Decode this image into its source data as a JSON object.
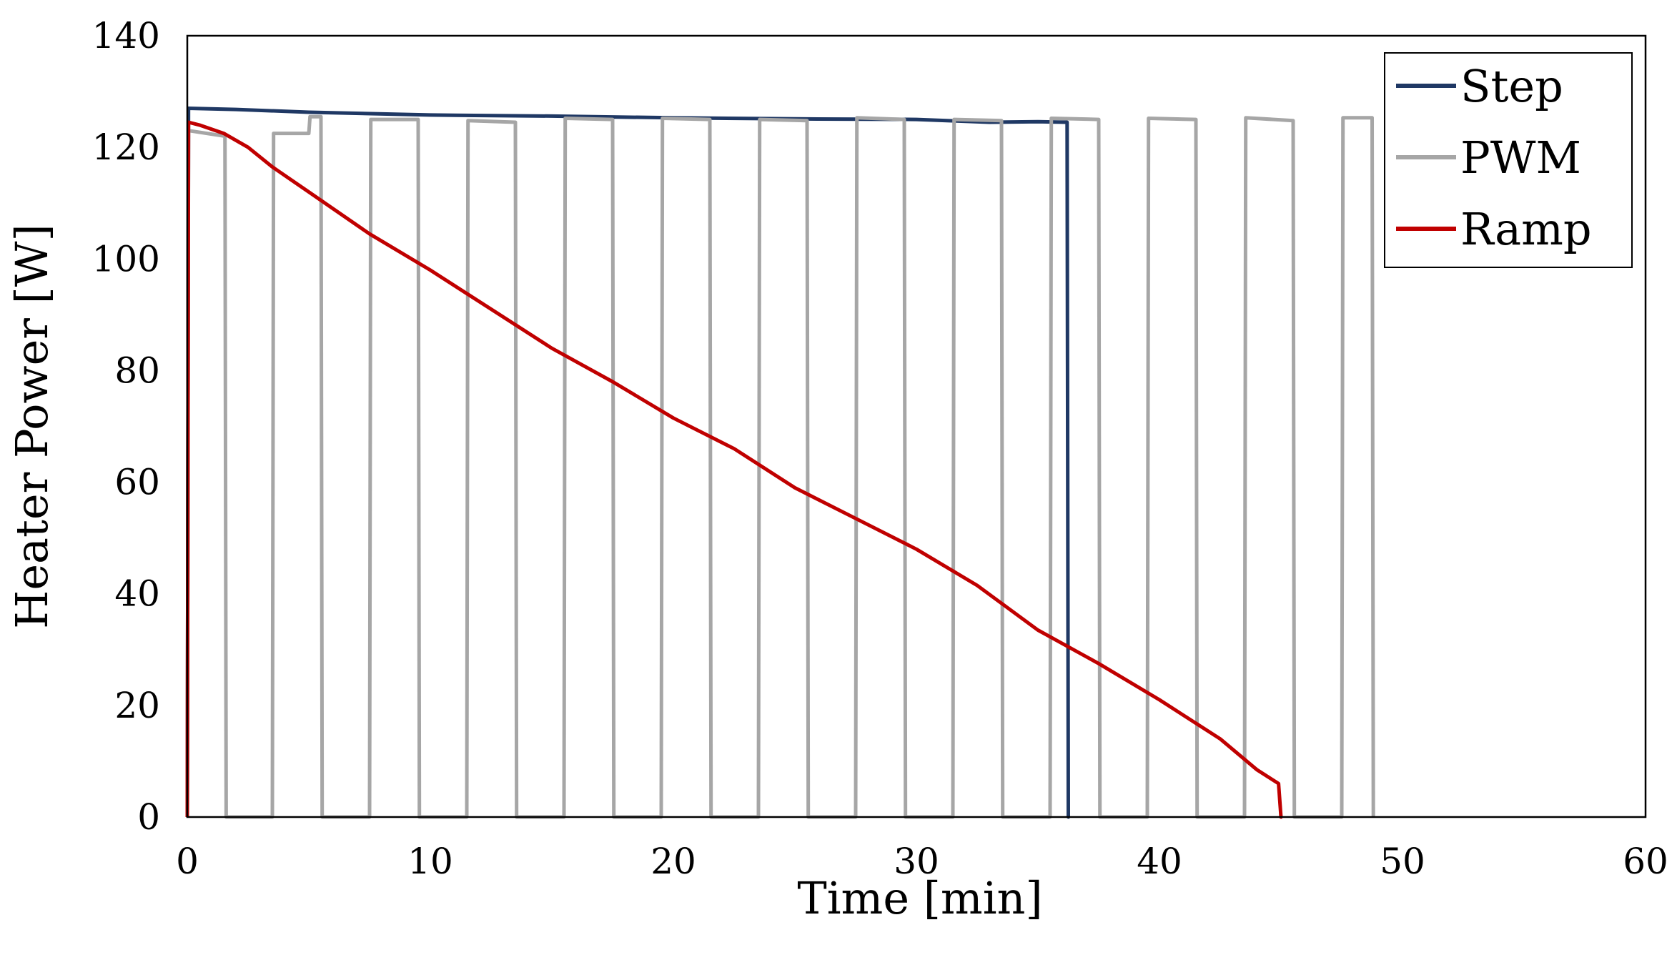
{
  "chart_data": {
    "type": "line",
    "title": "",
    "xlabel": "Time [min]",
    "ylabel": "Heater Power [W]",
    "xlim": [
      0,
      60
    ],
    "ylim": [
      0,
      140
    ],
    "xticks": [
      0,
      10,
      20,
      30,
      40,
      50,
      60
    ],
    "yticks": [
      0,
      20,
      40,
      60,
      80,
      100,
      120,
      140
    ],
    "grid": false,
    "legend": "top-right",
    "series": [
      {
        "name": "Step",
        "color": "#1f3864",
        "x": [
          0,
          0.05,
          2,
          5,
          10,
          15,
          20,
          25,
          30,
          33,
          35,
          36.2,
          36.25,
          36.3
        ],
        "y": [
          0,
          127,
          126.8,
          126.3,
          125.8,
          125.6,
          125.3,
          125.1,
          125,
          124.5,
          124.6,
          124.5,
          0,
          0
        ]
      },
      {
        "name": "PWM",
        "color": "#a6a6a6",
        "x": [
          0,
          0.05,
          1.55,
          1.6,
          3.5,
          3.55,
          5.0,
          5.05,
          5.5,
          5.55,
          7.5,
          7.55,
          7.55,
          9.5,
          9.55,
          11.5,
          11.55,
          11.55,
          13.5,
          13.55,
          15.5,
          15.55,
          15.55,
          17.5,
          17.55,
          19.5,
          19.55,
          21.5,
          21.55,
          23.5,
          23.55,
          25.5,
          25.55,
          27.5,
          27.55,
          29.5,
          29.55,
          31.5,
          31.55,
          33.5,
          33.55,
          35.5,
          35.55,
          37.5,
          37.55,
          39.5,
          39.55,
          41.5,
          41.55,
          43.5,
          43.55,
          45.5,
          45.55,
          47.5,
          47.55,
          48.75,
          48.8
        ],
        "y": [
          0,
          123,
          122,
          0,
          0,
          122.5,
          122.5,
          125.5,
          125.5,
          0,
          0,
          125,
          125,
          125,
          0,
          0,
          124.8,
          124.8,
          124.5,
          0,
          0,
          125.2,
          125.2,
          125,
          0,
          0,
          125.2,
          125,
          0,
          0,
          125,
          124.8,
          0,
          0,
          125.3,
          125,
          0,
          0,
          125,
          124.8,
          0,
          0,
          125.2,
          125,
          0,
          0,
          125.2,
          125,
          0,
          0,
          125.3,
          124.8,
          0,
          0,
          125.3,
          125.3,
          0
        ]
      },
      {
        "name": "Ramp",
        "color": "#c00000",
        "x": [
          0,
          0.05,
          0.5,
          1.5,
          2.5,
          3.5,
          5,
          7.5,
          10,
          12.5,
          15,
          17.5,
          20,
          22.5,
          25,
          27.5,
          30,
          32.5,
          35,
          37.5,
          40,
          42.5,
          44,
          44.9,
          45.0,
          45.05
        ],
        "y": [
          0,
          124.5,
          124,
          122.5,
          120,
          116.5,
          112,
          104.5,
          98,
          91,
          84,
          78,
          71.5,
          66,
          59,
          53.5,
          48,
          41.5,
          33.5,
          27.5,
          21,
          14,
          8.5,
          6,
          0,
          0
        ]
      }
    ]
  }
}
